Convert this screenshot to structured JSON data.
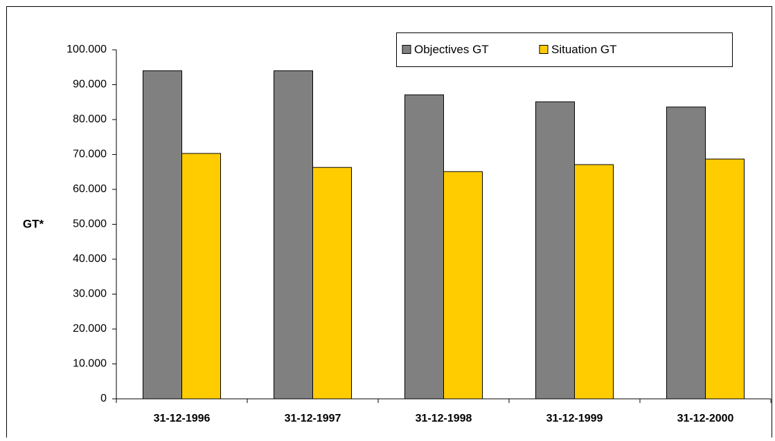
{
  "chart_data": {
    "type": "bar",
    "y_label": "GT*",
    "categories": [
      "31-12-1996",
      "31-12-1997",
      "31-12-1998",
      "31-12-1999",
      "31-12-2000"
    ],
    "series": [
      {
        "name": "Objectives GT",
        "color": "#808080",
        "values": [
          94000,
          94000,
          87100,
          85100,
          83600
        ]
      },
      {
        "name": "Situation GT",
        "color": "#ffcc00",
        "values": [
          70300,
          66300,
          65100,
          67100,
          68700
        ]
      }
    ],
    "ylim": [
      0,
      100000
    ],
    "yticks": [
      0,
      {
        "value": 10000,
        "label": "10.000"
      },
      {
        "value": 20000,
        "label": "20.000"
      },
      {
        "value": 30000,
        "label": "30.000"
      },
      {
        "value": 40000,
        "label": "40.000"
      },
      {
        "value": 50000,
        "label": "50.000"
      },
      {
        "value": 60000,
        "label": "60.000"
      },
      {
        "value": 70000,
        "label": "70.000"
      },
      {
        "value": 80000,
        "label": "80.000"
      },
      {
        "value": 90000,
        "label": "90.000"
      },
      {
        "value": 100000,
        "label": "100.000"
      }
    ],
    "grid": false,
    "legend": "top-right"
  }
}
